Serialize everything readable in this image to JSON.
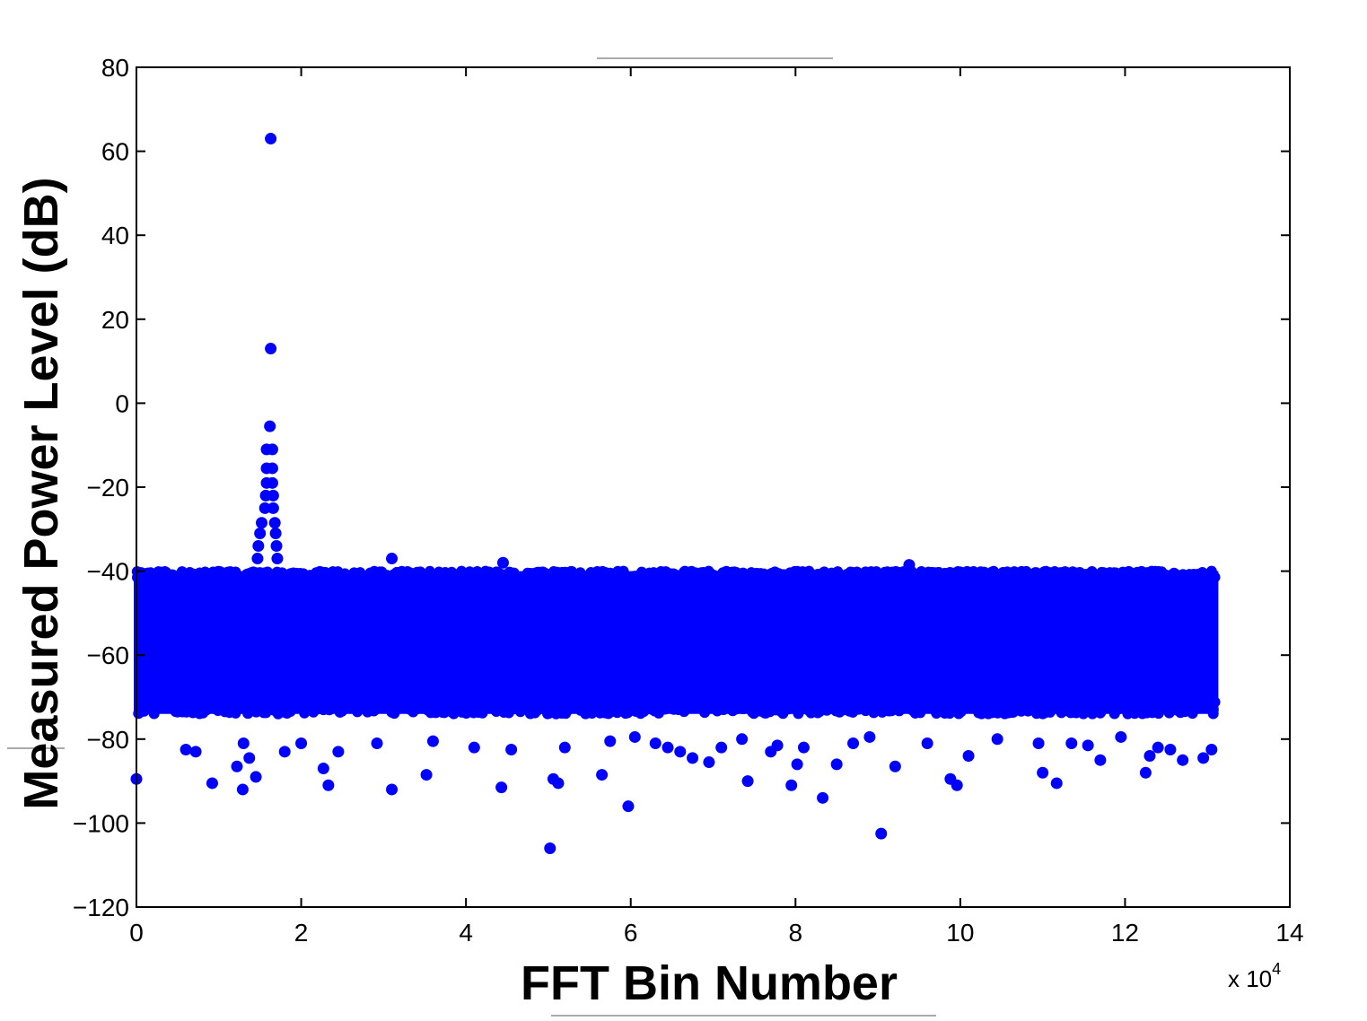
{
  "chart_data": {
    "type": "scatter",
    "title": "",
    "xlabel": "FFT Bin Number",
    "ylabel": "Measured Power Level (dB)",
    "x_multiplier": {
      "base": "x 10",
      "exponent": "4"
    },
    "xlim": [
      0,
      14
    ],
    "ylim": [
      -120,
      80
    ],
    "x_ticks": [
      "0",
      "2",
      "4",
      "6",
      "8",
      "10",
      "12",
      "14"
    ],
    "y_ticks": [
      "80",
      "60",
      "40",
      "20",
      "0",
      "−20",
      "−40",
      "−60",
      "−80",
      "−100",
      "−120"
    ],
    "grid": false,
    "marker_color": "#0000ff",
    "noise_band": {
      "x_range": [
        0,
        13.1
      ],
      "y_range": [
        -74,
        -40
      ]
    },
    "series": [
      {
        "values": [
          [
            1.63,
            63
          ],
          [
            1.63,
            13
          ],
          [
            1.62,
            -5.5
          ],
          [
            1.58,
            -11
          ],
          [
            1.65,
            -11
          ],
          [
            1.58,
            -15.5
          ],
          [
            1.65,
            -15.5
          ],
          [
            1.58,
            -19
          ],
          [
            1.65,
            -19
          ],
          [
            1.57,
            -22
          ],
          [
            1.66,
            -22
          ],
          [
            1.56,
            -25
          ],
          [
            1.66,
            -25
          ],
          [
            1.52,
            -28.5
          ],
          [
            1.68,
            -28.5
          ],
          [
            1.5,
            -31
          ],
          [
            1.69,
            -31
          ],
          [
            1.48,
            -34
          ],
          [
            1.7,
            -34
          ],
          [
            1.47,
            -37
          ],
          [
            1.71,
            -37
          ],
          [
            3.1,
            -37
          ],
          [
            4.45,
            -38
          ],
          [
            9.38,
            -38.5
          ],
          [
            0.0,
            -89.5
          ],
          [
            0.92,
            -90.5
          ],
          [
            1.22,
            -86.5
          ],
          [
            1.29,
            -92
          ],
          [
            1.45,
            -89
          ],
          [
            1.37,
            -84.5
          ],
          [
            2.27,
            -87
          ],
          [
            2.33,
            -91
          ],
          [
            3.1,
            -92
          ],
          [
            3.52,
            -88.5
          ],
          [
            4.43,
            -91.5
          ],
          [
            5.02,
            -106
          ],
          [
            5.06,
            -89.5
          ],
          [
            5.12,
            -90.5
          ],
          [
            5.65,
            -88.5
          ],
          [
            5.97,
            -96
          ],
          [
            7.42,
            -90
          ],
          [
            7.95,
            -91
          ],
          [
            8.33,
            -94
          ],
          [
            8.5,
            -86
          ],
          [
            9.04,
            -102.5
          ],
          [
            9.21,
            -86.5
          ],
          [
            9.88,
            -89.5
          ],
          [
            9.96,
            -91
          ],
          [
            10.1,
            -84
          ],
          [
            11.0,
            -88
          ],
          [
            11.17,
            -90.5
          ],
          [
            12.25,
            -88
          ],
          [
            12.3,
            -84
          ],
          [
            12.7,
            -85
          ],
          [
            12.95,
            -84.5
          ],
          [
            13.05,
            -82.5
          ],
          [
            0.6,
            -82.5
          ],
          [
            0.72,
            -83
          ],
          [
            1.3,
            -81
          ],
          [
            1.8,
            -83
          ],
          [
            2.0,
            -81
          ],
          [
            2.45,
            -83
          ],
          [
            2.92,
            -81
          ],
          [
            3.6,
            -80.5
          ],
          [
            4.1,
            -82
          ],
          [
            4.55,
            -82.5
          ],
          [
            5.2,
            -82
          ],
          [
            5.75,
            -80.5
          ],
          [
            6.05,
            -79.5
          ],
          [
            6.3,
            -81
          ],
          [
            6.45,
            -82
          ],
          [
            6.6,
            -83
          ],
          [
            6.75,
            -84.5
          ],
          [
            6.95,
            -85.5
          ],
          [
            7.1,
            -82
          ],
          [
            7.35,
            -80
          ],
          [
            7.7,
            -83
          ],
          [
            7.78,
            -81.5
          ],
          [
            8.02,
            -86
          ],
          [
            8.1,
            -82
          ],
          [
            8.7,
            -81
          ],
          [
            8.9,
            -79.5
          ],
          [
            9.6,
            -81
          ],
          [
            10.45,
            -80
          ],
          [
            10.95,
            -81
          ],
          [
            11.35,
            -81
          ],
          [
            11.55,
            -81.5
          ],
          [
            11.7,
            -85
          ],
          [
            11.95,
            -79.5
          ],
          [
            12.4,
            -82
          ],
          [
            12.55,
            -82.5
          ]
        ]
      }
    ]
  }
}
